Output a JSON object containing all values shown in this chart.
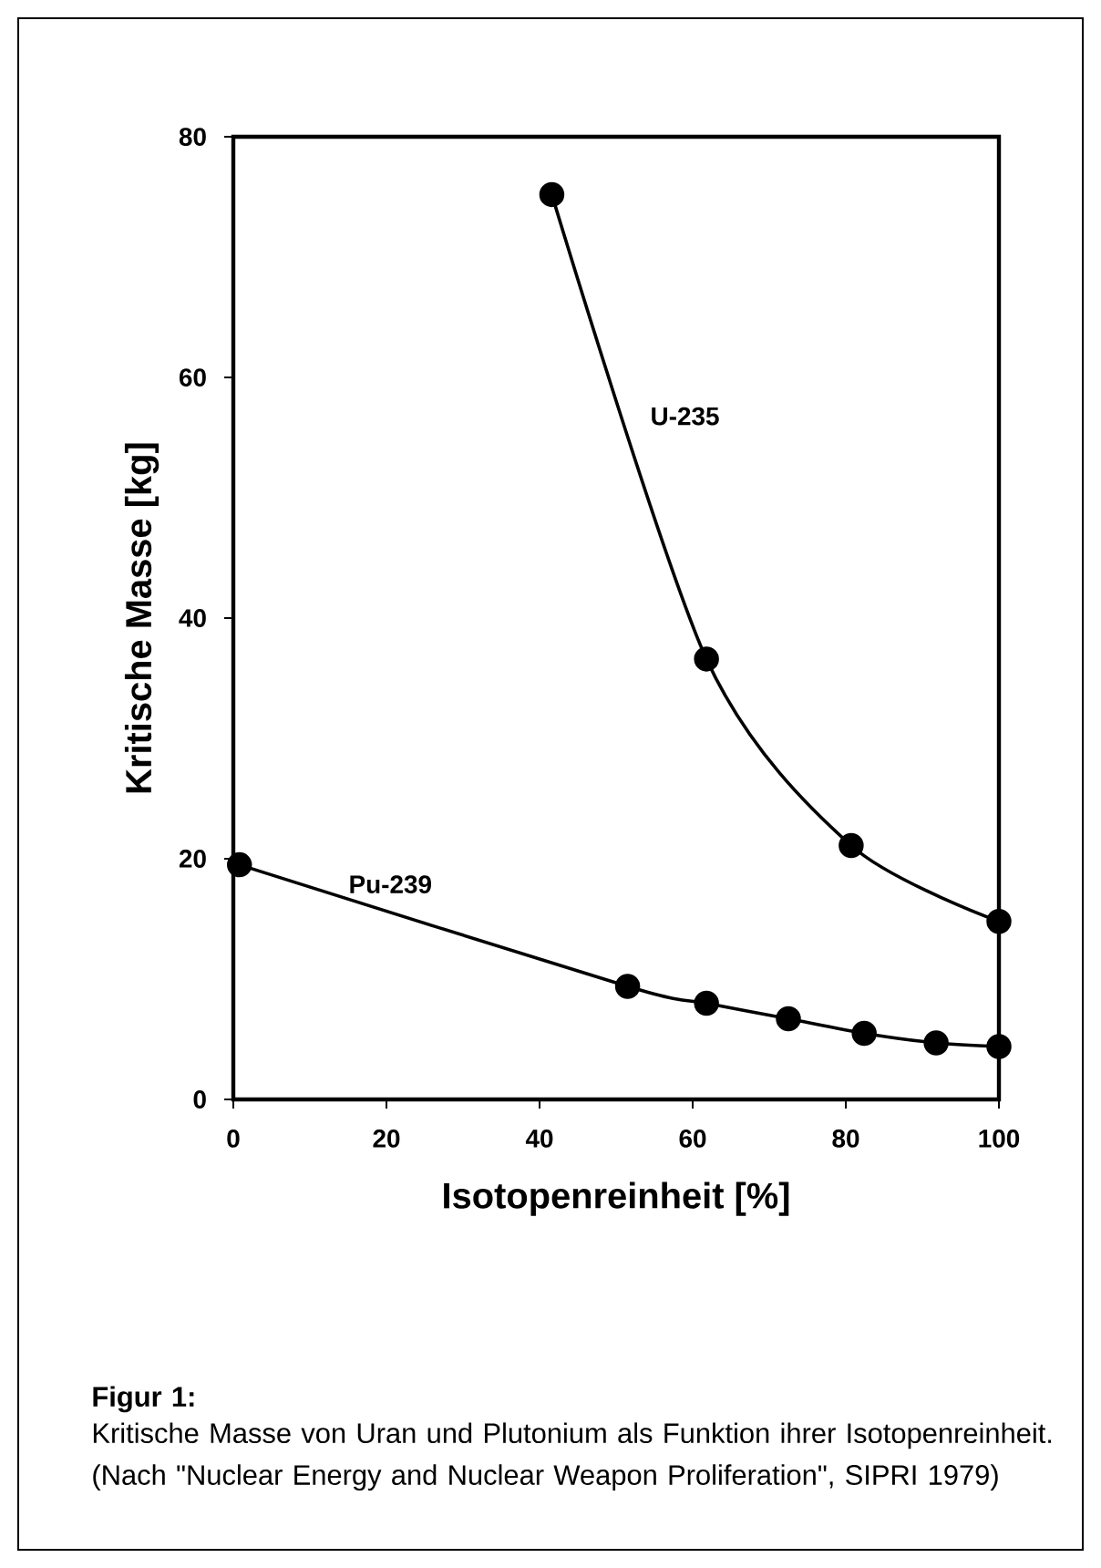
{
  "chart_data": {
    "type": "line",
    "xlabel": "Isotopenreinheit [%]",
    "ylabel": "Kritische Masse [kg]",
    "xlim": [
      0,
      100
    ],
    "xticks": [
      0,
      20,
      40,
      60,
      80,
      100
    ],
    "ylim": [
      0,
      80
    ],
    "yticks": [
      0,
      20,
      40,
      60,
      80
    ],
    "grid": false,
    "legend": false,
    "marker": "circle",
    "line_style": "solid",
    "series": [
      {
        "name": "U-235",
        "color": "#000000",
        "x": [
          41.6,
          61.8,
          80.7,
          100
        ],
        "values": [
          75.2,
          36.6,
          21.1,
          14.8
        ]
      },
      {
        "name": "Pu-239",
        "color": "#000000",
        "x": [
          0.8,
          51.5,
          61.8,
          72.5,
          82.4,
          91.8,
          100
        ],
        "values": [
          19.5,
          9.4,
          8.0,
          6.7,
          5.5,
          4.7,
          4.4
        ]
      }
    ],
    "annotations": [
      "Figur 1:",
      "Kritische Masse von Uran und Plutonium als Funktion ihrer Isotopenreinheit. (Nach \"Nuclear Energy and Nuclear Weapon Proliferation\", SIPRI 1979)"
    ]
  }
}
